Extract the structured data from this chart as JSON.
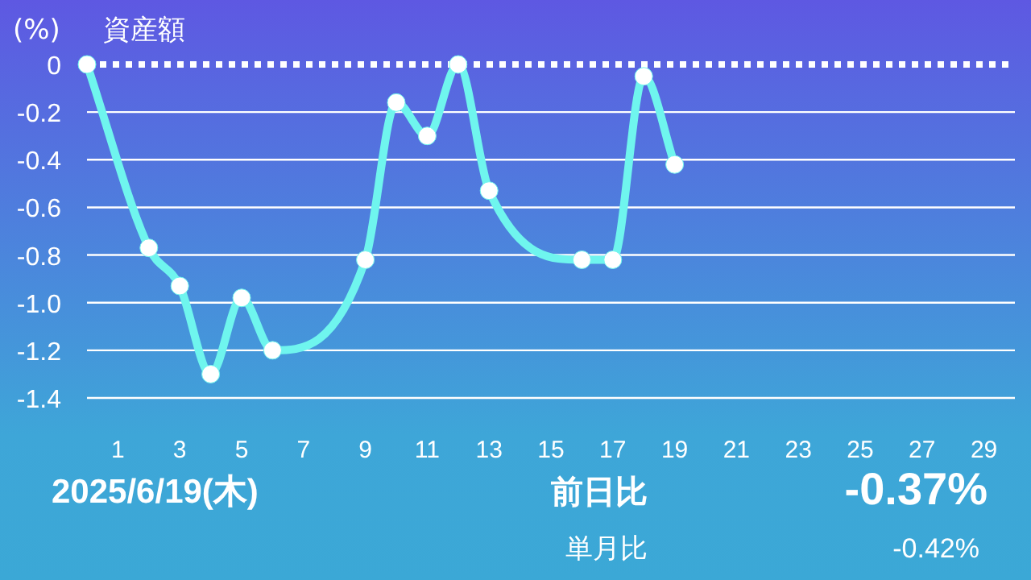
{
  "chart_data": {
    "type": "line",
    "title": "資産額",
    "ylabel": "(%)",
    "x": [
      0,
      2,
      3,
      4,
      5,
      6,
      9,
      10,
      11,
      12,
      13,
      16,
      17,
      18,
      19
    ],
    "values": [
      0,
      -0.77,
      -0.93,
      -1.3,
      -0.98,
      -1.2,
      -0.82,
      -0.16,
      -0.3,
      0,
      -0.53,
      -0.82,
      -0.82,
      -0.05,
      -0.42
    ],
    "color": "#6ff5ee",
    "marker": "circle",
    "xlim": [
      0,
      30
    ],
    "xticks": [
      1,
      3,
      5,
      7,
      9,
      11,
      13,
      15,
      17,
      19,
      21,
      23,
      25,
      27,
      29
    ],
    "ylim": [
      -1.4,
      0
    ],
    "yticks": [
      0,
      -0.2,
      -0.4,
      -0.6,
      -0.8,
      {
        "value": -1,
        "label": "-1.0"
      },
      -1.2,
      -1.4
    ],
    "grid": "y",
    "ref_lines": [
      {
        "axis": "y",
        "value": 0,
        "color": "#ffffff",
        "line_style": "dotted"
      }
    ],
    "annotations": [
      "2025/6/19(木)",
      "前日比",
      "-0.37%",
      "単月比",
      "-0.42%"
    ]
  }
}
